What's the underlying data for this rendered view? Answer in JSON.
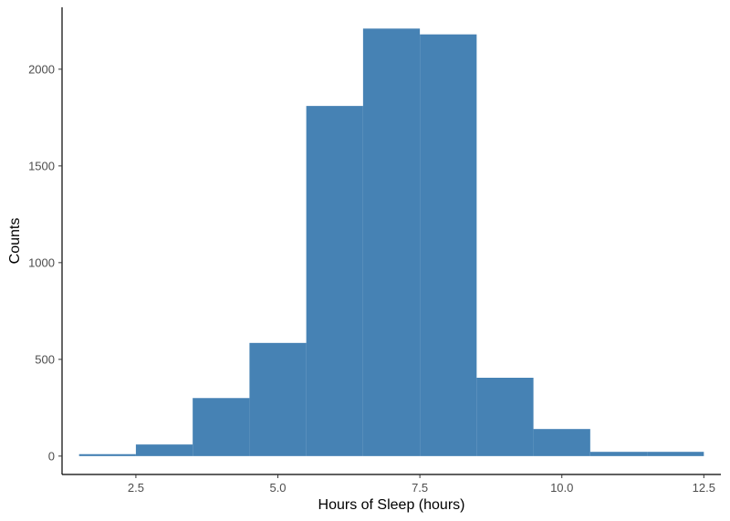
{
  "chart_data": {
    "type": "bar",
    "title": "",
    "xlabel": "Hours of Sleep (hours)",
    "ylabel": "Counts",
    "xlim": [
      1.2,
      12.8
    ],
    "ylim": [
      -95,
      2320
    ],
    "bin_width": 1.0,
    "bins": [
      {
        "x": 2,
        "count": 10
      },
      {
        "x": 3,
        "count": 60
      },
      {
        "x": 4,
        "count": 300
      },
      {
        "x": 5,
        "count": 585
      },
      {
        "x": 6,
        "count": 1810
      },
      {
        "x": 7,
        "count": 2210
      },
      {
        "x": 8,
        "count": 2180
      },
      {
        "x": 9,
        "count": 405
      },
      {
        "x": 10,
        "count": 140
      },
      {
        "x": 11,
        "count": 22
      },
      {
        "x": 12,
        "count": 22
      }
    ],
    "x_ticks": [
      {
        "value": 2.5,
        "label": "2.5"
      },
      {
        "value": 5.0,
        "label": "5.0"
      },
      {
        "value": 7.5,
        "label": "7.5"
      },
      {
        "value": 10.0,
        "label": "10.0"
      },
      {
        "value": 12.5,
        "label": "12.5"
      }
    ],
    "y_ticks": [
      {
        "value": 0,
        "label": "0"
      },
      {
        "value": 500,
        "label": "500"
      },
      {
        "value": 1000,
        "label": "1000"
      },
      {
        "value": 1500,
        "label": "1500"
      },
      {
        "value": 2000,
        "label": "2000"
      }
    ],
    "grid": false,
    "legend": "none",
    "colors": {
      "bar": "#4682B4",
      "axis": "#000000",
      "tick_text": "#4d4d4d"
    }
  }
}
